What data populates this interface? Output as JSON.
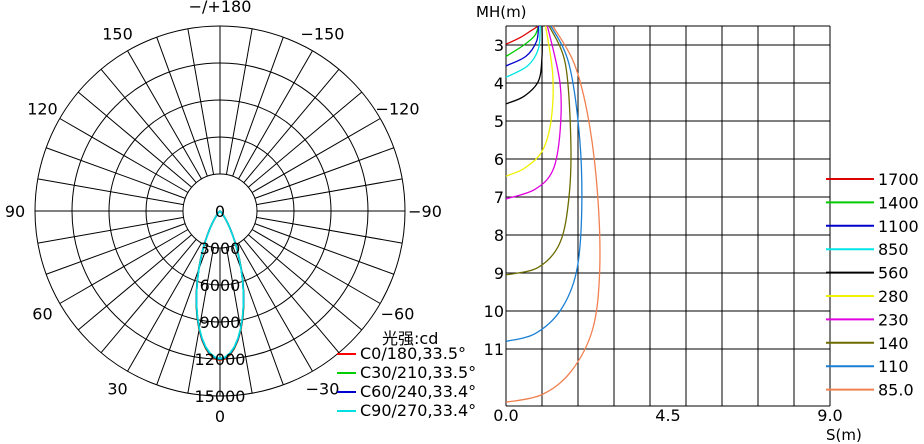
{
  "chart_data": [
    {
      "type": "polar",
      "angle_labels": [
        {
          "angle": 180,
          "text": "−/+180"
        },
        {
          "angle": 150,
          "text": "−150"
        },
        {
          "angle": 120,
          "text": "−120"
        },
        {
          "angle": 90,
          "text": "−90"
        },
        {
          "angle": 60,
          "text": "−60"
        },
        {
          "angle": 30,
          "text": "−30"
        },
        {
          "angle": 0,
          "text": "0"
        },
        {
          "angle": -30,
          "text": "30"
        },
        {
          "angle": -60,
          "text": "60"
        },
        {
          "angle": -90,
          "text": "90"
        },
        {
          "angle": -120,
          "text": "120"
        },
        {
          "angle": -150,
          "text": "150"
        }
      ],
      "radial_ticks": [
        "0",
        "3000",
        "6000",
        "9000",
        "12000",
        "15000"
      ],
      "radial_values": [
        0,
        3000,
        6000,
        9000,
        12000,
        15000
      ],
      "legend_title": "光强:cd",
      "series": [
        {
          "name": "C0/180,33.5°",
          "color": "#ff0000",
          "peak": 12100,
          "half_angle": 33.5
        },
        {
          "name": "C30/210,33.5°",
          "color": "#00cc00",
          "peak": 12050,
          "half_angle": 33.5
        },
        {
          "name": "C60/240,33.4°",
          "color": "#0000cc",
          "peak": 12000,
          "half_angle": 33.4
        },
        {
          "name": "C90/270,33.4°",
          "color": "#00e0e0",
          "peak": 11950,
          "half_angle": 33.4
        }
      ]
    },
    {
      "type": "line",
      "ylabel": "MH(m)",
      "xlabel": "S(m)",
      "xlim": [
        0,
        9
      ],
      "ylim": [
        2.5,
        12.5
      ],
      "x_tick_labels": [
        "0.0",
        "4.5",
        "9.0"
      ],
      "x_ticks": [
        0,
        4.5,
        9
      ],
      "y_tick_labels": [
        "3",
        "4",
        "5",
        "6",
        "7",
        "8",
        "9",
        "10",
        "11"
      ],
      "y_ticks": [
        3,
        4,
        5,
        6,
        7,
        8,
        9,
        10,
        11
      ],
      "series": [
        {
          "name": "1700",
          "color": "#dd0000",
          "points": [
            [
              0.9,
              2.5
            ],
            [
              0.7,
              2.62
            ],
            [
              0.4,
              2.8
            ],
            [
              0.0,
              2.98
            ]
          ]
        },
        {
          "name": "1400",
          "color": "#00cc00",
          "points": [
            [
              0.9,
              2.5
            ],
            [
              0.8,
              2.75
            ],
            [
              0.5,
              3.0
            ],
            [
              0.0,
              3.3
            ]
          ]
        },
        {
          "name": "1100",
          "color": "#0000cc",
          "points": [
            [
              0.9,
              2.5
            ],
            [
              0.85,
              2.9
            ],
            [
              0.55,
              3.3
            ],
            [
              0.0,
              3.55
            ]
          ]
        },
        {
          "name": "850",
          "color": "#00e5e5",
          "points": [
            [
              0.95,
              2.5
            ],
            [
              0.9,
              3.1
            ],
            [
              0.6,
              3.55
            ],
            [
              0.0,
              3.85
            ]
          ]
        },
        {
          "name": "560",
          "color": "#000000",
          "points": [
            [
              1.0,
              2.5
            ],
            [
              1.0,
              3.3
            ],
            [
              0.9,
              3.95
            ],
            [
              0.5,
              4.35
            ],
            [
              0.0,
              4.55
            ]
          ]
        },
        {
          "name": "280",
          "color": "#f0f000",
          "points": [
            [
              1.1,
              2.5
            ],
            [
              1.3,
              3.8
            ],
            [
              1.25,
              5.0
            ],
            [
              1.0,
              5.8
            ],
            [
              0.5,
              6.25
            ],
            [
              0.0,
              6.45
            ]
          ]
        },
        {
          "name": "230",
          "color": "#e000e0",
          "points": [
            [
              1.15,
              2.5
            ],
            [
              1.5,
              4.0
            ],
            [
              1.5,
              5.3
            ],
            [
              1.3,
              6.3
            ],
            [
              0.8,
              6.8
            ],
            [
              0.0,
              7.05
            ]
          ]
        },
        {
          "name": "140",
          "color": "#6b6b00",
          "points": [
            [
              1.2,
              2.5
            ],
            [
              1.65,
              3.5
            ],
            [
              1.8,
              5.5
            ],
            [
              1.75,
              7.0
            ],
            [
              1.5,
              8.2
            ],
            [
              0.9,
              8.85
            ],
            [
              0.0,
              9.05
            ]
          ]
        },
        {
          "name": "110",
          "color": "#1a7fd4",
          "points": [
            [
              1.25,
              2.5
            ],
            [
              1.75,
              3.5
            ],
            [
              2.05,
              5.5
            ],
            [
              2.1,
              7.5
            ],
            [
              1.95,
              9.0
            ],
            [
              1.5,
              10.0
            ],
            [
              0.8,
              10.6
            ],
            [
              0.0,
              10.8
            ]
          ]
        },
        {
          "name": "85.0",
          "color": "#f08050",
          "points": [
            [
              1.3,
              2.5
            ],
            [
              1.9,
              3.5
            ],
            [
              2.3,
              5.0
            ],
            [
              2.55,
              7.0
            ],
            [
              2.6,
              9.0
            ],
            [
              2.4,
              10.5
            ],
            [
              1.8,
              11.6
            ],
            [
              1.0,
              12.2
            ],
            [
              0.0,
              12.4
            ]
          ]
        }
      ]
    }
  ]
}
